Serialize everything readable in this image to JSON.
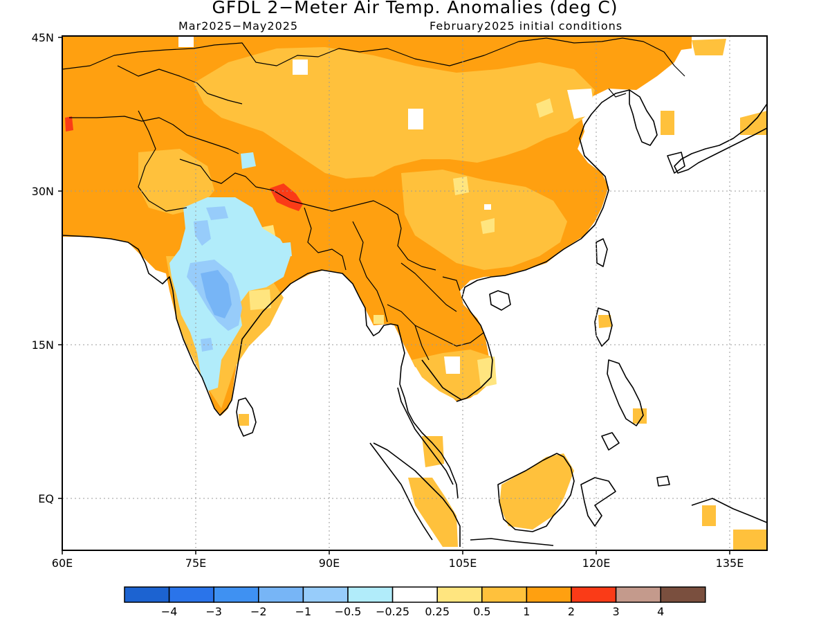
{
  "title": "GFDL 2−Meter Air Temp. Anomalies (deg C)",
  "period": "Mar2025−May2025",
  "init": "February2025 initial conditions",
  "lat_labels": [
    "45N",
    "30N",
    "15N",
    "EQ"
  ],
  "lon_labels": [
    "60E",
    "75E",
    "90E",
    "105E",
    "120E",
    "135E"
  ],
  "map_extent": {
    "lon": [
      60,
      139
    ],
    "lat": [
      -5,
      45
    ]
  },
  "colorbar": {
    "colors": [
      "#1c63d1",
      "#2a74ea",
      "#3f91f2",
      "#77b5f6",
      "#97ccfa",
      "#b1ecfa",
      "#ffffff",
      "#ffe57f",
      "#ffc13c",
      "#ffa010",
      "#fa3b17",
      "#c49a8c",
      "#7a4f3e"
    ],
    "labels": [
      "−4",
      "−3",
      "−2",
      "−1",
      "−0.5",
      "−0.25",
      "0.25",
      "0.5",
      "1",
      "2",
      "3",
      "4"
    ]
  },
  "legend_colors": {
    "land_anomaly": "#ffa010",
    "weak_warm": "#ffc13c",
    "strong_warm": "#fa3b17",
    "weak_cool": "#b1ecfa",
    "cool": "#97ccfa",
    "coastline": "#000000"
  }
}
